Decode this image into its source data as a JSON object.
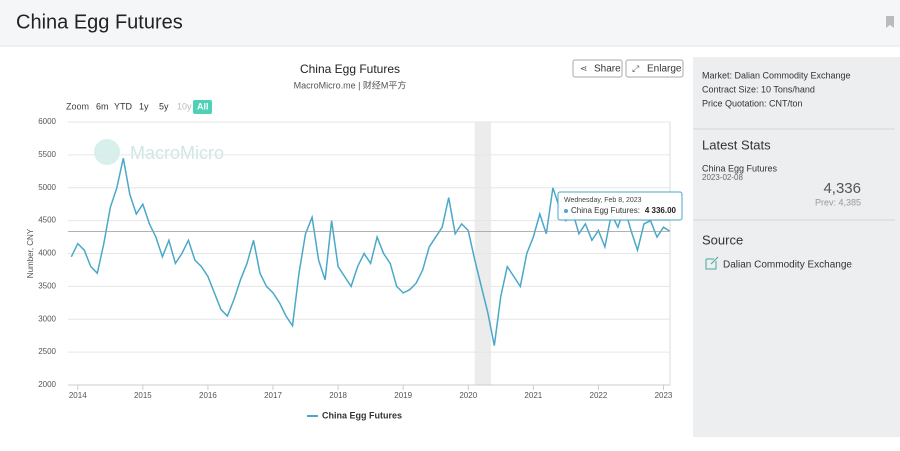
{
  "header": {
    "title": "China Egg Futures"
  },
  "toolbar": {
    "share": "Share",
    "enlarge": "Enlarge",
    "zoom": "Zoom",
    "ranges": [
      "6m",
      "YTD",
      "1y",
      "5y",
      "10y",
      "All"
    ],
    "active_range": 5,
    "watermark": "MacroMicro"
  },
  "chart_data": {
    "type": "line",
    "title": "China Egg Futures",
    "subtitle": "MacroMicro.me | 财经M平方",
    "y_label": "Number, CNY",
    "xlim": [
      2013.85,
      2023.1
    ],
    "xticks": [
      2014,
      2015,
      2016,
      2017,
      2018,
      2019,
      2020,
      2021,
      2022,
      2023
    ],
    "ylim": [
      2000,
      6000
    ],
    "yticks": [
      2000,
      2500,
      3000,
      3500,
      4000,
      4500,
      5000,
      5500,
      6000
    ],
    "grid": true,
    "shaded_region": [
      2020.1,
      2020.35
    ],
    "x": [
      2013.9,
      2014.0,
      2014.1,
      2014.2,
      2014.3,
      2014.4,
      2014.5,
      2014.6,
      2014.7,
      2014.8,
      2014.9,
      2015.0,
      2015.1,
      2015.2,
      2015.3,
      2015.4,
      2015.5,
      2015.6,
      2015.7,
      2015.8,
      2015.9,
      2016.0,
      2016.1,
      2016.2,
      2016.3,
      2016.4,
      2016.5,
      2016.6,
      2016.7,
      2016.8,
      2016.9,
      2017.0,
      2017.1,
      2017.2,
      2017.3,
      2017.4,
      2017.5,
      2017.6,
      2017.7,
      2017.8,
      2017.9,
      2018.0,
      2018.1,
      2018.2,
      2018.3,
      2018.4,
      2018.5,
      2018.6,
      2018.7,
      2018.8,
      2018.9,
      2019.0,
      2019.1,
      2019.2,
      2019.3,
      2019.4,
      2019.5,
      2019.6,
      2019.7,
      2019.8,
      2019.9,
      2020.0,
      2020.1,
      2020.2,
      2020.3,
      2020.4,
      2020.5,
      2020.6,
      2020.7,
      2020.8,
      2020.9,
      2021.0,
      2021.1,
      2021.2,
      2021.3,
      2021.4,
      2021.5,
      2021.6,
      2021.7,
      2021.8,
      2021.9,
      2022.0,
      2022.1,
      2022.2,
      2022.3,
      2022.4,
      2022.5,
      2022.6,
      2022.7,
      2022.8,
      2022.9,
      2023.0,
      2023.1
    ],
    "series": [
      {
        "name": "China Egg Futures",
        "color": "#4aa8c8",
        "values": [
          3950,
          4150,
          4050,
          3800,
          3700,
          4150,
          4700,
          5000,
          5450,
          4900,
          4600,
          4750,
          4450,
          4250,
          3950,
          4200,
          3850,
          4000,
          4200,
          3900,
          3800,
          3650,
          3400,
          3150,
          3050,
          3300,
          3600,
          3850,
          4200,
          3700,
          3500,
          3400,
          3250,
          3050,
          2900,
          3700,
          4300,
          4550,
          3900,
          3600,
          4500,
          3800,
          3650,
          3500,
          3800,
          4000,
          3850,
          4250,
          4000,
          3850,
          3500,
          3400,
          3450,
          3550,
          3750,
          4100,
          4250,
          4400,
          4850,
          4300,
          4450,
          4350,
          3900,
          3500,
          3100,
          2600,
          3350,
          3800,
          3650,
          3500,
          4000,
          4250,
          4600,
          4300,
          5000,
          4700,
          4500,
          4650,
          4300,
          4450,
          4200,
          4350,
          4100,
          4600,
          4400,
          4700,
          4350,
          4050,
          4450,
          4500,
          4250,
          4400,
          4336
        ]
      }
    ],
    "tooltip": {
      "title": "Wednesday, Feb 8, 2023",
      "text": "China Egg Futures:",
      "x": 2023.1,
      "value": 4336,
      "value_label": "4 336.00"
    }
  },
  "sidebar": {
    "info": [
      "Market: Dalian Commodity Exchange",
      "Contract Size: 10 Tons/hand",
      "Price Quotation: CNT/ton"
    ],
    "stats_heading": "Latest Stats",
    "stat_name": "China Egg Futures",
    "stat_date": "2023-02-08",
    "stat_value": "4,336",
    "stat_prev": "Prev: 4,385",
    "source_heading": "Source",
    "source": "Dalian Commodity Exchange"
  }
}
